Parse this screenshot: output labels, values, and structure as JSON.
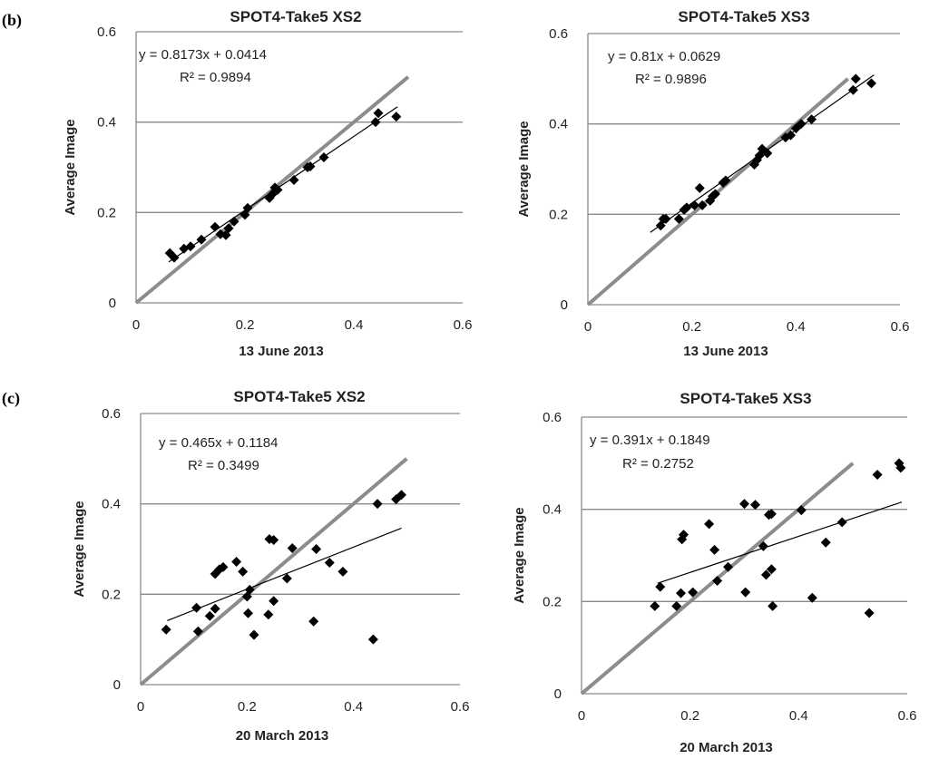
{
  "panel_labels": [
    "(b)",
    "(c)"
  ],
  "chart_data": [
    {
      "type": "scatter",
      "title": "SPOT4-Take5 XS2",
      "xlabel": "13 June 2013",
      "ylabel": "Average Image",
      "xlim": [
        0,
        0.6
      ],
      "ylim": [
        0,
        0.6
      ],
      "xticks": [
        "0",
        "0.2",
        "0.4",
        "0.6"
      ],
      "yticks": [
        "0",
        "0.2",
        "0.4",
        "0.6"
      ],
      "grid": "horizontal",
      "equation": "y = 0.8173x + 0.0414",
      "r2": "R² = 0.9894",
      "trend": {
        "slope": 0.8173,
        "intercept": 0.0414,
        "x_range": [
          0.06,
          0.48
        ]
      },
      "reference_line": {
        "x_range": [
          0,
          0.5
        ]
      },
      "points": [
        [
          0.062,
          0.11
        ],
        [
          0.07,
          0.1
        ],
        [
          0.088,
          0.12
        ],
        [
          0.1,
          0.125
        ],
        [
          0.12,
          0.14
        ],
        [
          0.145,
          0.168
        ],
        [
          0.155,
          0.152
        ],
        [
          0.165,
          0.15
        ],
        [
          0.17,
          0.165
        ],
        [
          0.18,
          0.18
        ],
        [
          0.2,
          0.195
        ],
        [
          0.205,
          0.21
        ],
        [
          0.245,
          0.232
        ],
        [
          0.25,
          0.24
        ],
        [
          0.255,
          0.255
        ],
        [
          0.26,
          0.25
        ],
        [
          0.29,
          0.272
        ],
        [
          0.315,
          0.3
        ],
        [
          0.32,
          0.302
        ],
        [
          0.345,
          0.322
        ],
        [
          0.44,
          0.4
        ],
        [
          0.445,
          0.42
        ],
        [
          0.478,
          0.412
        ]
      ]
    },
    {
      "type": "scatter",
      "title": "SPOT4-Take5  XS3",
      "xlabel": "13 June 2013",
      "ylabel": "Average Image",
      "xlim": [
        0,
        0.6
      ],
      "ylim": [
        0,
        0.6
      ],
      "xticks": [
        "0",
        "0.2",
        "0.4",
        "0.6"
      ],
      "yticks": [
        "0",
        "0.2",
        "0.4",
        "0.6"
      ],
      "grid": "horizontal",
      "equation": "y = 0.81x + 0.0629",
      "r2": "R² = 0.9896",
      "trend": {
        "slope": 0.81,
        "intercept": 0.0629,
        "x_range": [
          0.12,
          0.55
        ]
      },
      "reference_line": {
        "x_range": [
          0,
          0.5
        ]
      },
      "points": [
        [
          0.14,
          0.175
        ],
        [
          0.145,
          0.19
        ],
        [
          0.15,
          0.19
        ],
        [
          0.175,
          0.19
        ],
        [
          0.185,
          0.21
        ],
        [
          0.19,
          0.215
        ],
        [
          0.205,
          0.22
        ],
        [
          0.215,
          0.258
        ],
        [
          0.22,
          0.22
        ],
        [
          0.235,
          0.23
        ],
        [
          0.24,
          0.24
        ],
        [
          0.245,
          0.245
        ],
        [
          0.26,
          0.27
        ],
        [
          0.265,
          0.275
        ],
        [
          0.32,
          0.31
        ],
        [
          0.325,
          0.32
        ],
        [
          0.33,
          0.33
        ],
        [
          0.335,
          0.345
        ],
        [
          0.345,
          0.335
        ],
        [
          0.38,
          0.37
        ],
        [
          0.39,
          0.375
        ],
        [
          0.4,
          0.39
        ],
        [
          0.41,
          0.4
        ],
        [
          0.43,
          0.41
        ],
        [
          0.51,
          0.475
        ],
        [
          0.515,
          0.5
        ],
        [
          0.545,
          0.49
        ]
      ]
    },
    {
      "type": "scatter",
      "title": "SPOT4-Take5  XS2",
      "xlabel": "20 March 2013",
      "ylabel": "Average Image",
      "xlim": [
        0,
        0.6
      ],
      "ylim": [
        0,
        0.6
      ],
      "xticks": [
        "0",
        "0.2",
        "0.4",
        "0.6"
      ],
      "yticks": [
        "0",
        "0.2",
        "0.4",
        "0.6"
      ],
      "grid": "horizontal",
      "equation": "y = 0.465x + 0.1184",
      "r2": "R² = 0.3499",
      "trend": {
        "slope": 0.465,
        "intercept": 0.1184,
        "x_range": [
          0.05,
          0.49
        ]
      },
      "reference_line": {
        "x_range": [
          0,
          0.5
        ]
      },
      "points": [
        [
          0.048,
          0.122
        ],
        [
          0.105,
          0.17
        ],
        [
          0.108,
          0.118
        ],
        [
          0.13,
          0.152
        ],
        [
          0.14,
          0.168
        ],
        [
          0.14,
          0.245
        ],
        [
          0.148,
          0.255
        ],
        [
          0.155,
          0.26
        ],
        [
          0.18,
          0.272
        ],
        [
          0.192,
          0.25
        ],
        [
          0.2,
          0.195
        ],
        [
          0.202,
          0.158
        ],
        [
          0.205,
          0.21
        ],
        [
          0.213,
          0.11
        ],
        [
          0.24,
          0.155
        ],
        [
          0.242,
          0.322
        ],
        [
          0.25,
          0.32
        ],
        [
          0.25,
          0.185
        ],
        [
          0.275,
          0.235
        ],
        [
          0.285,
          0.302
        ],
        [
          0.325,
          0.14
        ],
        [
          0.33,
          0.3
        ],
        [
          0.355,
          0.27
        ],
        [
          0.38,
          0.25
        ],
        [
          0.437,
          0.1
        ],
        [
          0.445,
          0.4
        ],
        [
          0.48,
          0.41
        ],
        [
          0.49,
          0.42
        ]
      ]
    },
    {
      "type": "scatter",
      "title": "SPOT4-Take5  XS3",
      "xlabel": "20 March 2013",
      "ylabel": "Average Image",
      "xlim": [
        0,
        0.6
      ],
      "ylim": [
        0,
        0.6
      ],
      "xticks": [
        "0",
        "0.2",
        "0.4",
        "0.6"
      ],
      "yticks": [
        "0",
        "0.2",
        "0.4",
        "0.6"
      ],
      "grid": "horizontal",
      "equation": "y = 0.391x + 0.1849",
      "r2": "R² = 0.2752",
      "trend": {
        "slope": 0.391,
        "intercept": 0.1849,
        "x_range": [
          0.14,
          0.59
        ]
      },
      "reference_line": {
        "x_range": [
          0,
          0.5
        ]
      },
      "points": [
        [
          0.135,
          0.19
        ],
        [
          0.145,
          0.232
        ],
        [
          0.175,
          0.19
        ],
        [
          0.183,
          0.218
        ],
        [
          0.185,
          0.335
        ],
        [
          0.188,
          0.345
        ],
        [
          0.205,
          0.22
        ],
        [
          0.235,
          0.368
        ],
        [
          0.245,
          0.312
        ],
        [
          0.25,
          0.245
        ],
        [
          0.27,
          0.275
        ],
        [
          0.3,
          0.412
        ],
        [
          0.302,
          0.22
        ],
        [
          0.32,
          0.41
        ],
        [
          0.335,
          0.32
        ],
        [
          0.34,
          0.258
        ],
        [
          0.345,
          0.388
        ],
        [
          0.35,
          0.39
        ],
        [
          0.35,
          0.27
        ],
        [
          0.352,
          0.19
        ],
        [
          0.405,
          0.398
        ],
        [
          0.425,
          0.208
        ],
        [
          0.45,
          0.328
        ],
        [
          0.48,
          0.372
        ],
        [
          0.53,
          0.175
        ],
        [
          0.545,
          0.475
        ],
        [
          0.585,
          0.5
        ],
        [
          0.588,
          0.49
        ]
      ]
    }
  ]
}
